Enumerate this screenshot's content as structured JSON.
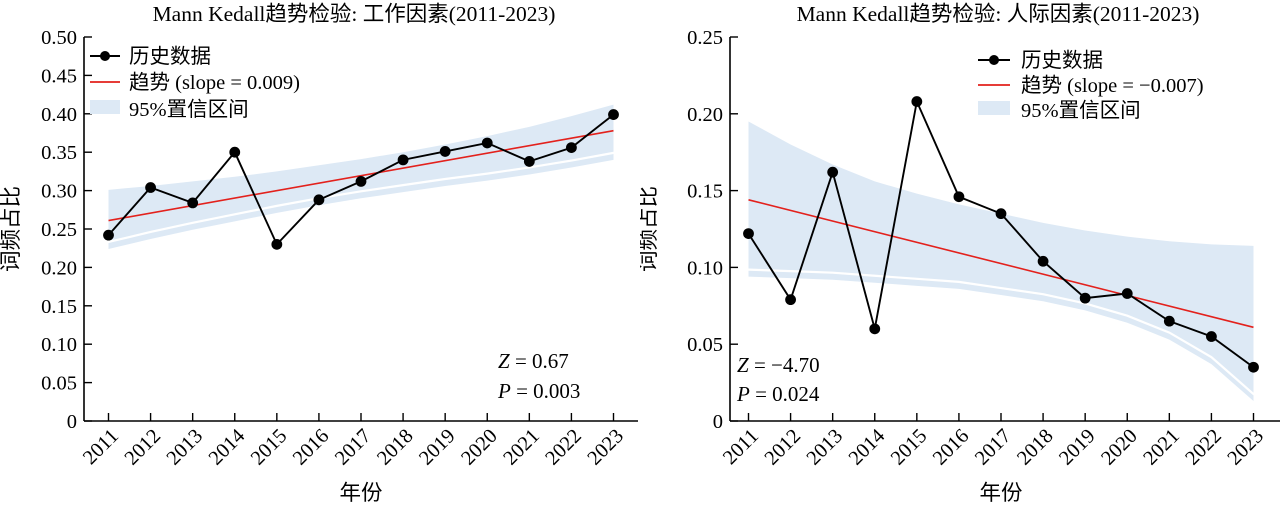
{
  "colors": {
    "band": "#dde9f5",
    "trend": "#e3211c",
    "data": "#000000",
    "seam": "#ffffff",
    "axis": "#000000"
  },
  "chart_data": [
    {
      "type": "line",
      "title": "Mann Kedall趋势检验: 工作因素(2011-2023)",
      "xlabel": "年份",
      "ylabel": "词频占比",
      "ylim": [
        0,
        0.5
      ],
      "yticks": [
        "0",
        "0.05",
        "0.10",
        "0.15",
        "0.20",
        "0.25",
        "0.30",
        "0.35",
        "0.40",
        "0.45",
        "0.50"
      ],
      "categories": [
        "2011",
        "2012",
        "2013",
        "2014",
        "2015",
        "2016",
        "2017",
        "2018",
        "2019",
        "2020",
        "2021",
        "2022",
        "2023"
      ],
      "series_label": "历史数据",
      "values": [
        0.242,
        0.304,
        0.284,
        0.35,
        0.23,
        0.288,
        0.312,
        0.34,
        0.351,
        0.362,
        0.338,
        0.356,
        0.399
      ],
      "trend": {
        "label": "趋势 (slope = 0.009)",
        "slope": 0.009,
        "start": 0.261,
        "end": 0.378
      },
      "ci": {
        "label": "95%置信区间",
        "upper": [
          0.301,
          0.306,
          0.312,
          0.318,
          0.325,
          0.333,
          0.341,
          0.35,
          0.36,
          0.371,
          0.383,
          0.397,
          0.412
        ],
        "lower": [
          0.224,
          0.237,
          0.249,
          0.26,
          0.271,
          0.281,
          0.29,
          0.298,
          0.306,
          0.313,
          0.321,
          0.33,
          0.34
        ]
      },
      "stats": [
        {
          "sym": "Z",
          "rest": " = 0.67"
        },
        {
          "sym": "P",
          "rest": " = 0.003"
        }
      ],
      "stats_pos": "bottom-right",
      "legend_pos": "upper-left",
      "grid": false
    },
    {
      "type": "line",
      "title": "Mann Kedall趋势检验: 人际因素(2011-2023)",
      "xlabel": "年份",
      "ylabel": "词频占比",
      "ylim": [
        0,
        0.25
      ],
      "yticks": [
        "0",
        "0.05",
        "0.10",
        "0.15",
        "0.20",
        "0.25"
      ],
      "categories": [
        "2011",
        "2012",
        "2013",
        "2014",
        "2015",
        "2016",
        "2017",
        "2018",
        "2019",
        "2020",
        "2021",
        "2022",
        "2023"
      ],
      "series_label": "历史数据",
      "values": [
        0.122,
        0.079,
        0.162,
        0.06,
        0.208,
        0.146,
        0.135,
        0.104,
        0.08,
        0.083,
        0.065,
        0.055,
        0.035
      ],
      "trend": {
        "label": "趋势 (slope = −0.007)",
        "slope": -0.007,
        "start": 0.144,
        "end": 0.061
      },
      "ci": {
        "label": "95%置信区间",
        "upper": [
          0.195,
          0.18,
          0.167,
          0.156,
          0.148,
          0.141,
          0.135,
          0.129,
          0.124,
          0.12,
          0.117,
          0.115,
          0.114
        ],
        "lower": [
          0.094,
          0.093,
          0.092,
          0.09,
          0.088,
          0.086,
          0.082,
          0.078,
          0.072,
          0.064,
          0.053,
          0.037,
          0.013
        ]
      },
      "stats": [
        {
          "sym": "Z",
          "rest": " = −4.70"
        },
        {
          "sym": "P",
          "rest": " = 0.024"
        }
      ],
      "stats_pos": "bottom-left",
      "legend_pos": "upper-right",
      "grid": false
    }
  ]
}
